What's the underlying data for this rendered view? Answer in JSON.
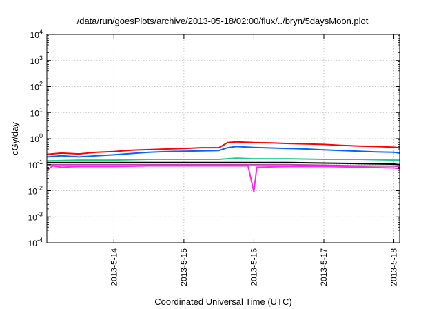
{
  "chart_data": {
    "type": "line",
    "title": "/data/run/goesPlots/archive/2013-05-18/02:00/flux/../bryn/5daysMoon.plot",
    "xlabel": "Coordinated Universal Time (UTC)",
    "ylabel": "cGy/day",
    "yscale": "log",
    "ylim": [
      0.0001,
      10000
    ],
    "xlim": [
      "2013-05-13T01:00",
      "2013-05-18T02:00"
    ],
    "grid": true,
    "y_ticks": [
      {
        "base": "10",
        "exp": "-4"
      },
      {
        "base": "10",
        "exp": "-3"
      },
      {
        "base": "10",
        "exp": "-2"
      },
      {
        "base": "10",
        "exp": "-1"
      },
      {
        "base": "10",
        "exp": "0"
      },
      {
        "base": "10",
        "exp": "1"
      },
      {
        "base": "10",
        "exp": "2"
      },
      {
        "base": "10",
        "exp": "3"
      },
      {
        "base": "10",
        "exp": "4"
      }
    ],
    "x_ticks": [
      "2013-5-14",
      "2013-5-15",
      "2013-5-16",
      "2013-5-17",
      "2013-5-18"
    ],
    "x_tick_dates": [
      "2013-05-14T00:00",
      "2013-05-15T00:00",
      "2013-05-16T00:00",
      "2013-05-17T00:00",
      "2013-05-18T00:00"
    ],
    "series": [
      {
        "color": "#ff0000",
        "x": [
          "2013-05-13T01:00",
          "2013-05-13T06:00",
          "2013-05-13T12:00",
          "2013-05-13T18:00",
          "2013-05-14T00:00",
          "2013-05-14T06:00",
          "2013-05-14T12:00",
          "2013-05-14T18:00",
          "2013-05-15T00:00",
          "2013-05-15T06:00",
          "2013-05-15T12:00",
          "2013-05-15T15:00",
          "2013-05-15T18:00",
          "2013-05-16T00:00",
          "2013-05-16T06:00",
          "2013-05-16T12:00",
          "2013-05-16T18:00",
          "2013-05-17T00:00",
          "2013-05-17T06:00",
          "2013-05-17T12:00",
          "2013-05-17T18:00",
          "2013-05-18T00:00",
          "2013-05-18T02:00"
        ],
        "values": [
          0.25,
          0.28,
          0.26,
          0.3,
          0.32,
          0.36,
          0.38,
          0.4,
          0.42,
          0.45,
          0.45,
          0.7,
          0.75,
          0.7,
          0.68,
          0.65,
          0.62,
          0.6,
          0.55,
          0.52,
          0.5,
          0.47,
          0.45
        ]
      },
      {
        "color": "#0066ff",
        "x": [
          "2013-05-13T01:00",
          "2013-05-13T06:00",
          "2013-05-13T12:00",
          "2013-05-13T18:00",
          "2013-05-14T00:00",
          "2013-05-14T06:00",
          "2013-05-14T12:00",
          "2013-05-14T18:00",
          "2013-05-15T00:00",
          "2013-05-15T06:00",
          "2013-05-15T12:00",
          "2013-05-15T15:00",
          "2013-05-15T18:00",
          "2013-05-16T00:00",
          "2013-05-16T06:00",
          "2013-05-16T12:00",
          "2013-05-16T18:00",
          "2013-05-17T00:00",
          "2013-05-17T06:00",
          "2013-05-17T12:00",
          "2013-05-17T18:00",
          "2013-05-18T00:00",
          "2013-05-18T02:00"
        ],
        "values": [
          0.2,
          0.22,
          0.2,
          0.22,
          0.24,
          0.27,
          0.3,
          0.32,
          0.33,
          0.34,
          0.35,
          0.45,
          0.5,
          0.46,
          0.44,
          0.42,
          0.4,
          0.37,
          0.35,
          0.33,
          0.31,
          0.3,
          0.28
        ]
      },
      {
        "color": "#22cc88",
        "x": [
          "2013-05-13T01:00",
          "2013-05-13T12:00",
          "2013-05-14T00:00",
          "2013-05-14T12:00",
          "2013-05-15T00:00",
          "2013-05-15T12:00",
          "2013-05-15T18:00",
          "2013-05-16T00:00",
          "2013-05-16T12:00",
          "2013-05-17T00:00",
          "2013-05-17T12:00",
          "2013-05-18T00:00",
          "2013-05-18T02:00"
        ],
        "values": [
          0.14,
          0.15,
          0.15,
          0.16,
          0.16,
          0.16,
          0.18,
          0.17,
          0.17,
          0.16,
          0.16,
          0.15,
          0.15
        ]
      },
      {
        "color": "#000000",
        "x": [
          "2013-05-13T01:00",
          "2013-05-13T12:00",
          "2013-05-14T00:00",
          "2013-05-14T12:00",
          "2013-05-15T00:00",
          "2013-05-15T12:00",
          "2013-05-15T18:00",
          "2013-05-16T00:00",
          "2013-05-16T12:00",
          "2013-05-17T00:00",
          "2013-05-17T12:00",
          "2013-05-18T00:00",
          "2013-05-18T02:00"
        ],
        "values": [
          0.12,
          0.12,
          0.12,
          0.12,
          0.12,
          0.12,
          0.12,
          0.12,
          0.12,
          0.115,
          0.11,
          0.105,
          0.1
        ]
      },
      {
        "color": "#bb44aa",
        "x": [
          "2013-05-13T01:00",
          "2013-05-13T12:00",
          "2013-05-14T00:00",
          "2013-05-14T12:00",
          "2013-05-15T00:00",
          "2013-05-15T12:00",
          "2013-05-16T00:00",
          "2013-05-16T12:00",
          "2013-05-17T00:00",
          "2013-05-17T12:00",
          "2013-05-18T00:00",
          "2013-05-18T02:00"
        ],
        "values": [
          0.1,
          0.1,
          0.1,
          0.1,
          0.1,
          0.1,
          0.1,
          0.1,
          0.095,
          0.09,
          0.088,
          0.085
        ]
      },
      {
        "color": "#ff22ff",
        "x": [
          "2013-05-13T01:00",
          "2013-05-13T03:00",
          "2013-05-13T06:00",
          "2013-05-13T12:00",
          "2013-05-14T00:00",
          "2013-05-14T12:00",
          "2013-05-15T00:00",
          "2013-05-15T12:00",
          "2013-05-15T22:00",
          "2013-05-16T00:00",
          "2013-05-16T01:00",
          "2013-05-16T12:00",
          "2013-05-17T00:00",
          "2013-05-17T12:00",
          "2013-05-18T00:00",
          "2013-05-18T02:00"
        ],
        "values": [
          0.06,
          0.09,
          0.08,
          0.085,
          0.085,
          0.09,
          0.09,
          0.09,
          0.09,
          0.009,
          0.08,
          0.085,
          0.085,
          0.08,
          0.075,
          0.07
        ]
      }
    ]
  }
}
